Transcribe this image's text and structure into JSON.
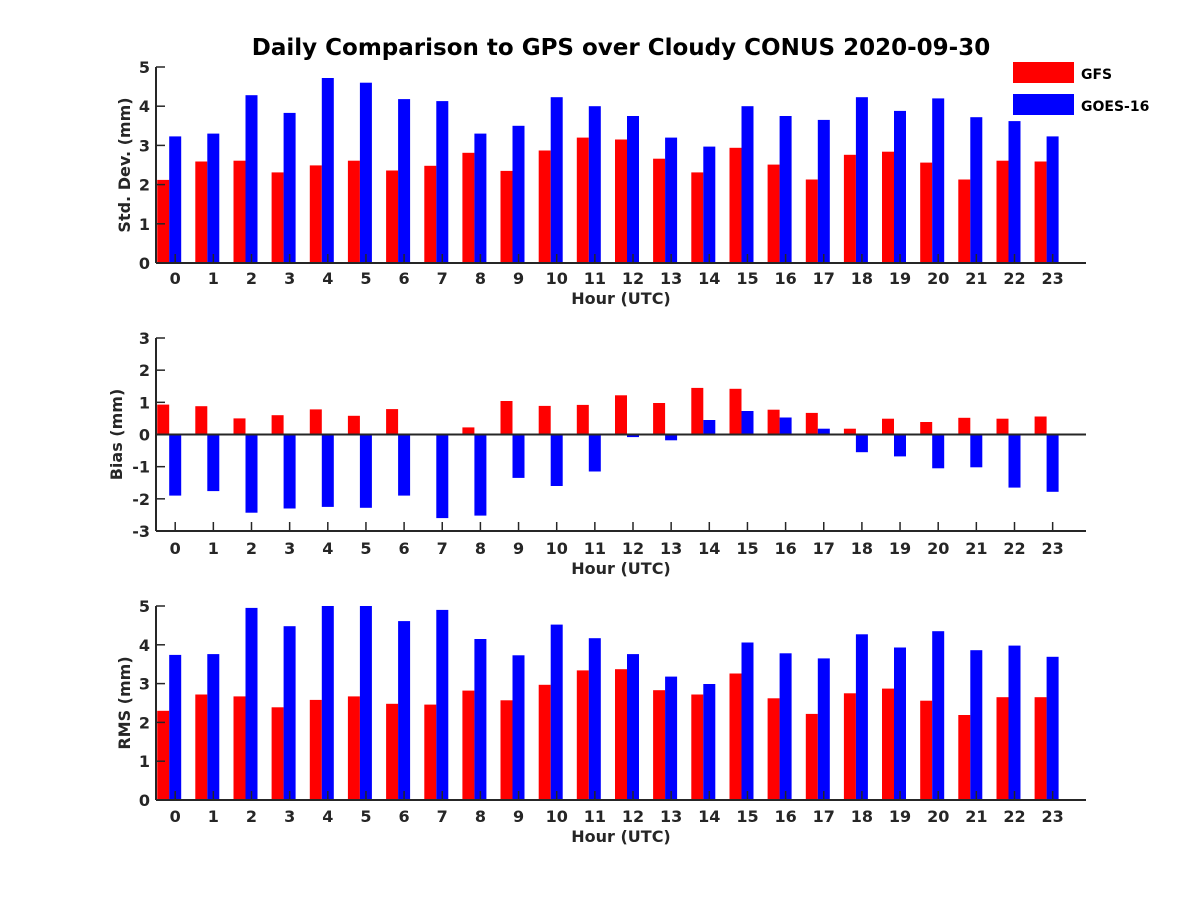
{
  "colors": {
    "GFS": "#ff0000",
    "GOES-16": "#0000ff",
    "axis": "#262626"
  },
  "chart_data": [
    {
      "type": "bar",
      "title": "Daily Comparison to GPS over Cloudy CONUS 2020-09-30",
      "xlabel": "Hour (UTC)",
      "ylabel": "Std. Dev. (mm)",
      "ylim": [
        0,
        5
      ],
      "yticks": [
        "0",
        "1",
        "2",
        "3",
        "4",
        "5"
      ],
      "categories": [
        "0",
        "1",
        "2",
        "3",
        "4",
        "5",
        "6",
        "7",
        "8",
        "9",
        "10",
        "11",
        "12",
        "13",
        "14",
        "15",
        "16",
        "17",
        "18",
        "19",
        "20",
        "21",
        "22",
        "23"
      ],
      "legend": {
        "position": "top-right",
        "entries": [
          "GFS",
          "GOES-16"
        ]
      },
      "series": [
        {
          "name": "GFS",
          "values": [
            2.12,
            2.59,
            2.61,
            2.31,
            2.49,
            2.61,
            2.36,
            2.48,
            2.81,
            2.35,
            2.87,
            3.2,
            3.15,
            2.66,
            2.31,
            2.94,
            2.51,
            2.13,
            2.76,
            2.84,
            2.56,
            2.13,
            2.61,
            2.59
          ]
        },
        {
          "name": "GOES-16",
          "values": [
            3.23,
            3.3,
            4.28,
            3.83,
            4.72,
            4.6,
            4.18,
            4.13,
            3.3,
            3.5,
            4.23,
            4.0,
            3.75,
            3.2,
            2.97,
            4.0,
            3.75,
            3.65,
            4.23,
            3.88,
            4.2,
            3.72,
            3.62,
            3.23
          ]
        }
      ]
    },
    {
      "type": "bar",
      "xlabel": "Hour (UTC)",
      "ylabel": "Bias (mm)",
      "ylim": [
        -3,
        3
      ],
      "yticks": [
        "-3",
        "-2",
        "-1",
        "0",
        "1",
        "2",
        "3"
      ],
      "categories": [
        "0",
        "1",
        "2",
        "3",
        "4",
        "5",
        "6",
        "7",
        "8",
        "9",
        "10",
        "11",
        "12",
        "13",
        "14",
        "15",
        "16",
        "17",
        "18",
        "19",
        "20",
        "21",
        "22",
        "23"
      ],
      "series": [
        {
          "name": "GFS",
          "values": [
            0.93,
            0.88,
            0.5,
            0.6,
            0.78,
            0.58,
            0.79,
            0.0,
            0.22,
            1.04,
            0.89,
            0.92,
            1.22,
            0.98,
            1.45,
            1.42,
            0.77,
            0.67,
            0.18,
            0.49,
            0.39,
            0.52,
            0.49,
            0.56
          ]
        },
        {
          "name": "GOES-16",
          "values": [
            -1.9,
            -1.76,
            -2.43,
            -2.3,
            -2.25,
            -2.28,
            -1.9,
            -2.6,
            -2.52,
            -1.35,
            -1.6,
            -1.15,
            -0.08,
            -0.18,
            0.45,
            0.73,
            0.53,
            0.18,
            -0.55,
            -0.68,
            -1.05,
            -1.02,
            -1.65,
            -1.78
          ]
        }
      ]
    },
    {
      "type": "bar",
      "xlabel": "Hour (UTC)",
      "ylabel": "RMS (mm)",
      "ylim": [
        0,
        5
      ],
      "yticks": [
        "0",
        "1",
        "2",
        "3",
        "4",
        "5"
      ],
      "categories": [
        "0",
        "1",
        "2",
        "3",
        "4",
        "5",
        "6",
        "7",
        "8",
        "9",
        "10",
        "11",
        "12",
        "13",
        "14",
        "15",
        "16",
        "17",
        "18",
        "19",
        "20",
        "21",
        "22",
        "23"
      ],
      "series": [
        {
          "name": "GFS",
          "values": [
            2.3,
            2.72,
            2.67,
            2.39,
            2.58,
            2.67,
            2.48,
            2.46,
            2.82,
            2.57,
            2.97,
            3.34,
            3.37,
            2.83,
            2.72,
            3.26,
            2.62,
            2.22,
            2.75,
            2.87,
            2.56,
            2.19,
            2.65,
            2.65
          ]
        },
        {
          "name": "GOES-16",
          "values": [
            3.74,
            3.76,
            4.95,
            4.48,
            5.0,
            5.0,
            4.61,
            4.9,
            4.15,
            3.73,
            4.52,
            4.17,
            3.76,
            3.18,
            2.99,
            4.06,
            3.78,
            3.65,
            4.27,
            3.93,
            4.35,
            3.86,
            3.98,
            3.69
          ]
        }
      ]
    }
  ]
}
